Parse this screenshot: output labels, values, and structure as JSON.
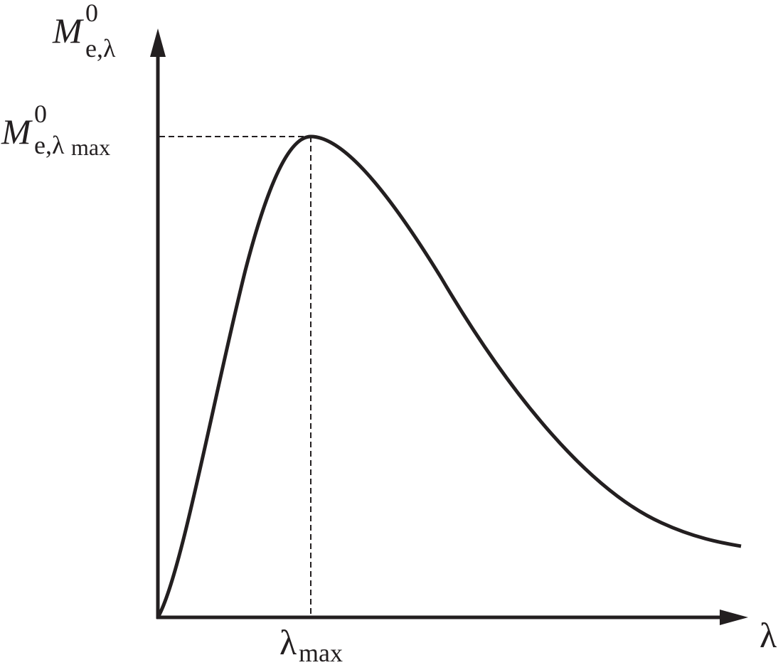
{
  "y_axis_label": {
    "symbol": "M",
    "superscript": "0",
    "subscript": "e,λ"
  },
  "peak_label": {
    "symbol": "M",
    "superscript": "0",
    "subscript": "e,λ",
    "subsubscript": "max"
  },
  "peak_x_label": {
    "symbol": "λ",
    "subscript": "max"
  },
  "x_axis_label": {
    "symbol": "λ"
  }
}
